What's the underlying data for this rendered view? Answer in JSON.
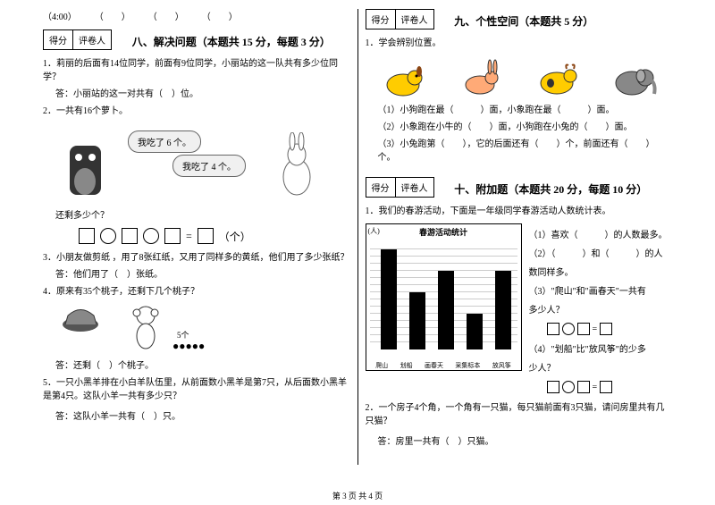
{
  "leftCol": {
    "timeRow": "（4:00）　　　（　　）　　　（　　）　　　（　　）",
    "scoreBox": {
      "score": "得分",
      "grader": "评卷人"
    },
    "section8": {
      "title": "八、解决问题（本题共 15 分，每题 3 分）",
      "q1": "1．莉丽的后面有14位同学，前面有9位同学，小丽站的这一队共有多少位同学？",
      "q1ans": "答：小丽站的这一对共有（　）位。",
      "q2": "2．一共有16个萝卜。",
      "bubble1": "我吃了 6 个。",
      "bubble2": "我吃了 4 个。",
      "q2ask": "还剩多少个？",
      "q2unit": "（个）",
      "q3": "3．小朋友做剪纸 ，用了8张红纸，又用了同样多的黄纸，他们用了多少张纸？",
      "q3ans": "答：他们用了（　）张纸。",
      "q4": "4．原来有35个桃子，还剩下几个桃子？",
      "q4label": "5个",
      "q4ans": "答：还剩（　）个桃子。",
      "q5": "5．一只小黑羊排在小白羊队伍里，从前面数小黑羊是第7只，从后面数小黑羊是第4只。这队小羊一共有多少只？",
      "q5ans": "答：这队小羊一共有（　）只。"
    }
  },
  "rightCol": {
    "scoreBox": {
      "score": "得分",
      "grader": "评卷人"
    },
    "section9": {
      "title": "九、个性空间（本题共 5 分）",
      "q1": "1．学会辨别位置。",
      "line1": "（1）小狗跑在最（　　　）面，小象跑在最（　　　）面。",
      "line2": "（2）小象跑在小牛的（　　）面，小狗跑在小兔的（　　）面。",
      "line3": "（3）小兔跑第（　　），它的后面还有（　　）个，前面还有（　　）个。"
    },
    "section10": {
      "title": "十、附加题（本题共 20 分，每题 10 分）",
      "q1": "1．我们的春游活动，下面是一年级同学春游活动人数统计表。",
      "chart": {
        "title": "春游活动统计",
        "yAxisLabel": "(人)",
        "labels": [
          "爬山",
          "划船",
          "画春天",
          "采集标本",
          "放风筝"
        ],
        "values": [
          14,
          8,
          11,
          5,
          11
        ],
        "maxValue": 15,
        "barColor": "#000000"
      },
      "r1": "（1）喜欢（　　　）的人数最多。",
      "r2": "（2）（　　　）和（　　　）的人",
      "r2b": "数同样多。",
      "r3": "（3）\"爬山\"和\"画春天\"一共有",
      "r3b": "多少人？",
      "r4": "（4）\"划船\"比\"放风筝\"的少多",
      "r4b": "少人？",
      "q2": "2．一个房子4个角，一个角有一只猫，每只猫前面有3只猫，请问房里共有几只猫？",
      "q2ans": "答：房里一共有（　）只猫。"
    }
  },
  "footer": "第 3 页 共 4 页"
}
